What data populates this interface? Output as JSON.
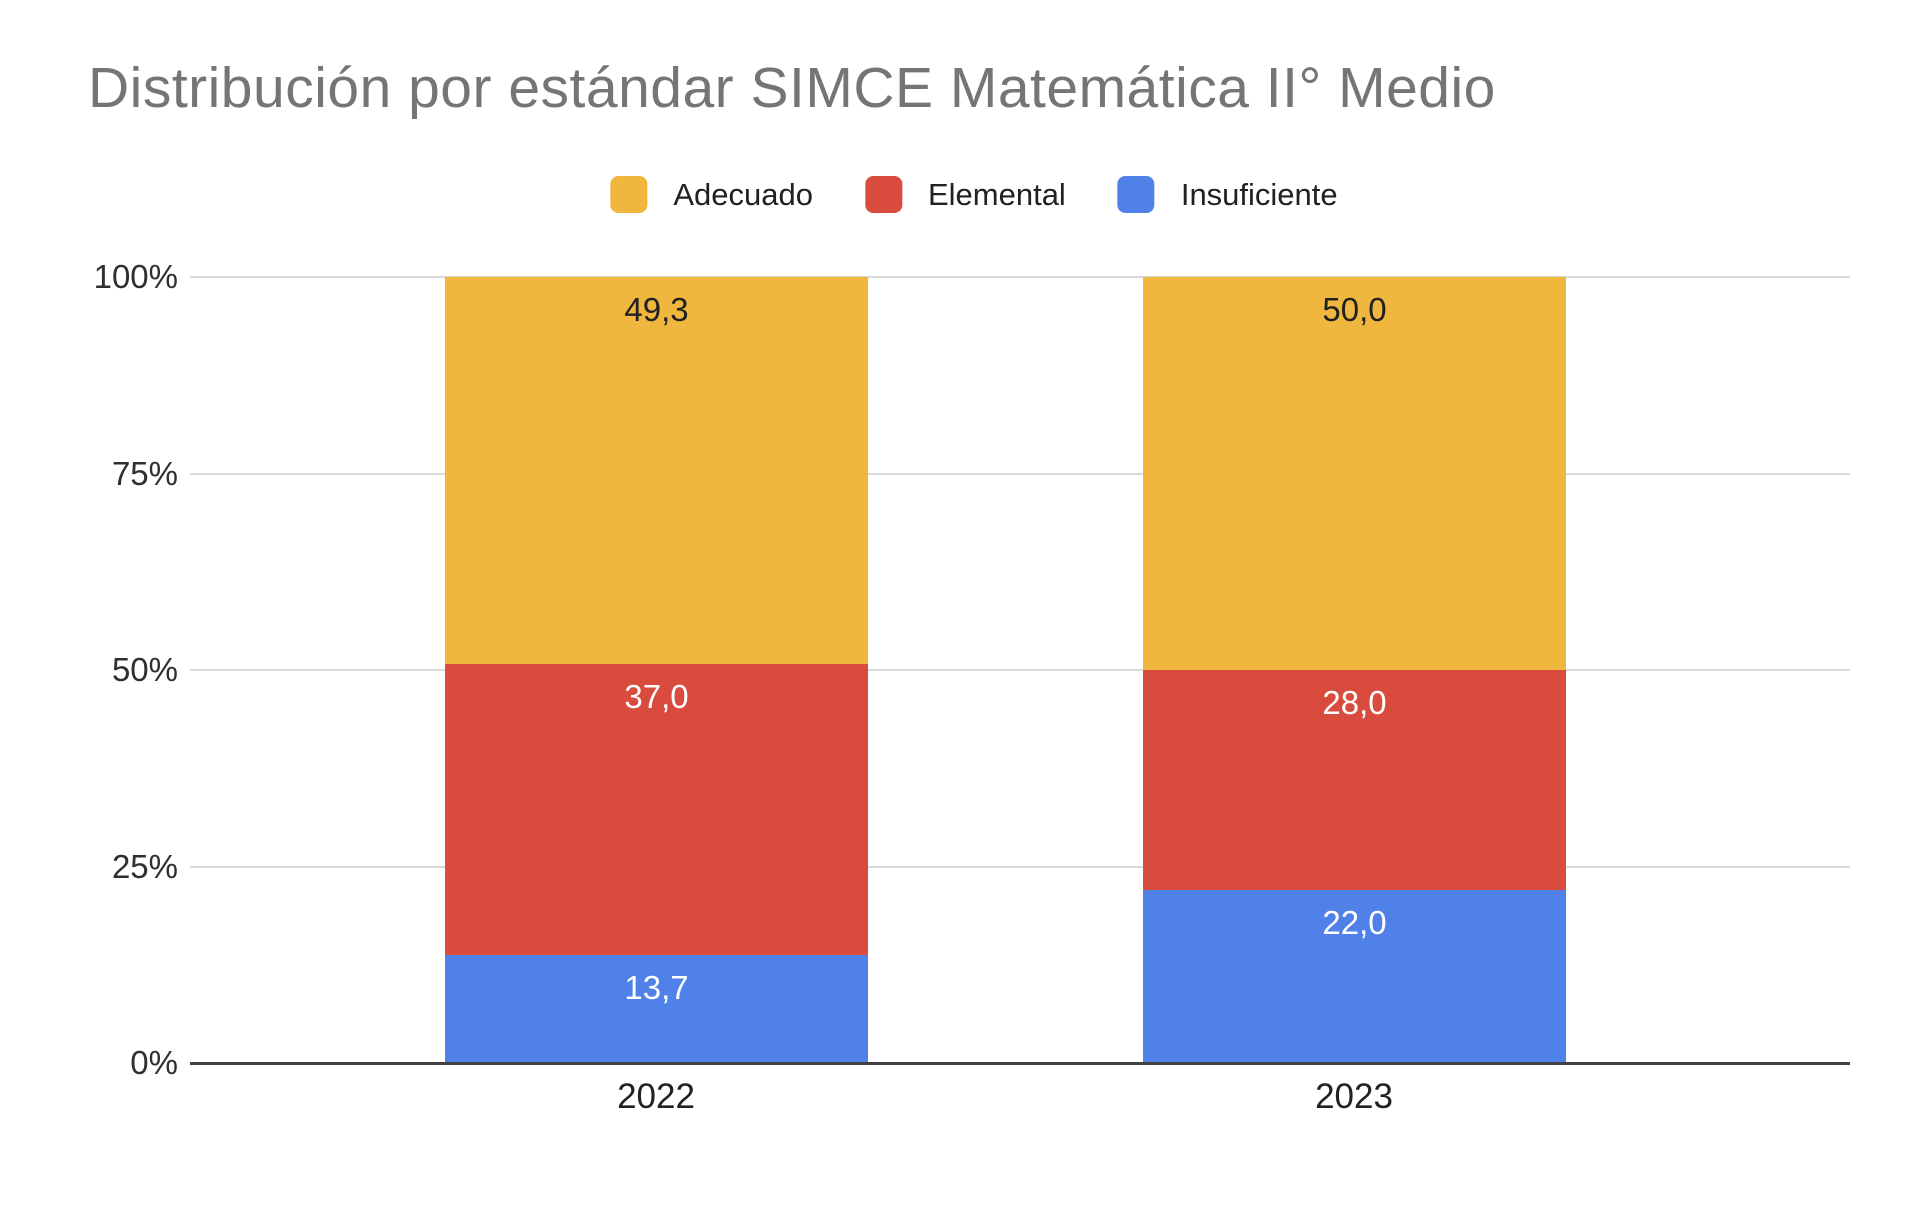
{
  "title": "Distribución por estándar SIMCE Matemática II° Medio",
  "colors": {
    "background": "#ffffff",
    "title_text": "#757575",
    "axis_label": "#2f2f2f",
    "gridline": "#d9d9d9",
    "baseline": "#424242"
  },
  "chart_data": {
    "type": "bar",
    "subtype": "stacked-100-percent-column",
    "title": "Distribución por estándar SIMCE Matemática II° Medio",
    "categories": [
      "2022",
      "2023"
    ],
    "series": [
      {
        "name": "Adecuado",
        "color": "#f0b73e",
        "values": [
          49.3,
          50.0
        ],
        "labels": [
          "49,3",
          "50,0"
        ],
        "label_color": "#212121"
      },
      {
        "name": "Elemental",
        "color": "#d94b3c",
        "values": [
          37.0,
          28.0
        ],
        "labels": [
          "37,0",
          "28,0"
        ],
        "label_color": "#ffffff"
      },
      {
        "name": "Insuficiente",
        "color": "#4f81e9",
        "values": [
          13.7,
          22.0
        ],
        "labels": [
          "13,7",
          "22,0"
        ],
        "label_color": "#ffffff"
      }
    ],
    "stack_order_top_to_bottom": [
      "Adecuado",
      "Elemental",
      "Insuficiente"
    ],
    "yticks": [
      "0%",
      "25%",
      "50%",
      "75%",
      "100%"
    ],
    "ytick_values": [
      0,
      25,
      50,
      75,
      100
    ],
    "ylim": [
      0,
      100
    ],
    "xlabel": "",
    "ylabel": "",
    "grid": true,
    "legend_position": "top"
  }
}
